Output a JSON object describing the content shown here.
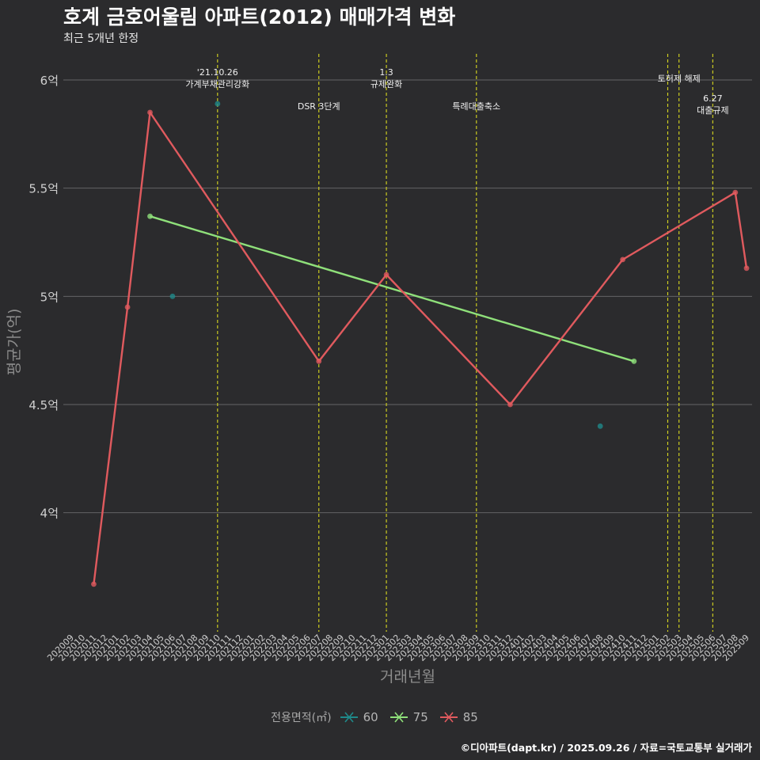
{
  "title": "호계 금호어울림 아파트(2012) 매매가격 변화",
  "subtitle": "최근 5개년 한정",
  "caption": "©디아파트(dapt.kr) / 2025.09.26 / 자료=국토교통부 실거래가",
  "chart_data": {
    "type": "line",
    "xlabel": "거래년월",
    "ylabel": "평균가(억)",
    "ylim": [
      3.45,
      6.15
    ],
    "y_ticks": [
      4.0,
      4.5,
      5.0,
      5.5,
      6.0
    ],
    "y_tick_labels": [
      "4억",
      "4.5억",
      "5억",
      "5.5억",
      "6억"
    ],
    "grid": true,
    "categories": [
      "202009",
      "202010",
      "202011",
      "202012",
      "202101",
      "202102",
      "202103",
      "202104",
      "202105",
      "202106",
      "202107",
      "202108",
      "202109",
      "202110",
      "202111",
      "202112",
      "202201",
      "202202",
      "202203",
      "202204",
      "202205",
      "202206",
      "202207",
      "202208",
      "202209",
      "202210",
      "202211",
      "202212",
      "202301",
      "202302",
      "202303",
      "202304",
      "202305",
      "202306",
      "202307",
      "202308",
      "202309",
      "202310",
      "202311",
      "202312",
      "202401",
      "202402",
      "202403",
      "202404",
      "202405",
      "202406",
      "202407",
      "202408",
      "202409",
      "202410",
      "202411",
      "202412",
      "202501",
      "202502",
      "202503",
      "202504",
      "202505",
      "202506",
      "202507",
      "202508",
      "202509"
    ],
    "legend": {
      "title": "전용면적(㎡)",
      "position": "bottom"
    },
    "series": [
      {
        "name": "60",
        "color": "#1f8a8a",
        "line": false,
        "points": [
          {
            "x": "202106",
            "y": 5.0
          },
          {
            "x": "202110",
            "y": 5.89
          },
          {
            "x": "202408",
            "y": 4.4
          }
        ]
      },
      {
        "name": "75",
        "color": "#8fe07a",
        "line": true,
        "points": [
          {
            "x": "202104",
            "y": 5.37
          },
          {
            "x": "202411",
            "y": 4.7
          }
        ]
      },
      {
        "name": "85",
        "color": "#e05a5e",
        "line": true,
        "points": [
          {
            "x": "202011",
            "y": 3.67
          },
          {
            "x": "202102",
            "y": 4.95
          },
          {
            "x": "202104",
            "y": 5.85
          },
          {
            "x": "202207",
            "y": 4.7
          },
          {
            "x": "202301",
            "y": 5.1
          },
          {
            "x": "202312",
            "y": 4.5
          },
          {
            "x": "202410",
            "y": 5.17
          },
          {
            "x": "202508",
            "y": 5.48
          },
          {
            "x": "202509",
            "y": 5.13
          }
        ]
      }
    ],
    "annotations": [
      {
        "x": "202110",
        "lines": [
          "'21.10.26",
          "가계부채관리강화"
        ],
        "row": 0
      },
      {
        "x": "202207",
        "lines": [
          "DSR 3단계"
        ],
        "row": 2
      },
      {
        "x": "202301",
        "lines": [
          "1.3",
          "규제완화"
        ],
        "row": 0
      },
      {
        "x": "202309",
        "lines": [
          "특례대출축소"
        ],
        "row": 2
      },
      {
        "x": "202502",
        "lines": [],
        "row": 0
      },
      {
        "x": "202503",
        "lines": [
          "토허제 해제"
        ],
        "row": 1
      },
      {
        "x": "202506",
        "lines": [
          "6.27",
          "대출규제"
        ],
        "row": 3
      }
    ]
  }
}
